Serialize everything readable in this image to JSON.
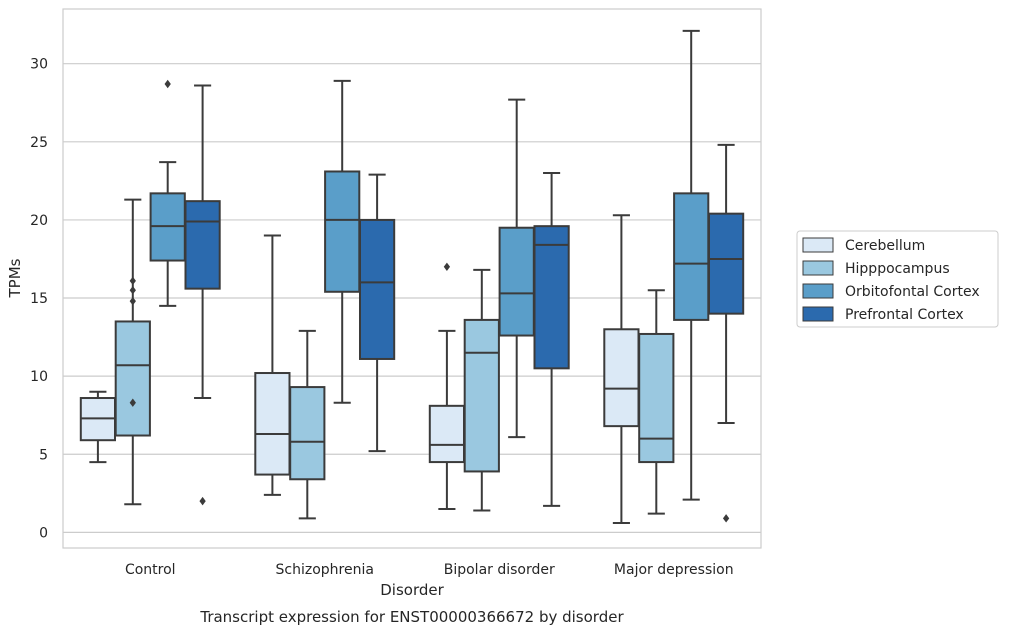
{
  "chart_data": {
    "type": "box",
    "xlabel": "Disorder",
    "ylabel": "TPMs",
    "caption": "Transcript expression for ENST00000366672 by disorder",
    "ylim": [
      -1,
      33.5
    ],
    "yticks": [
      0,
      5,
      10,
      15,
      20,
      25,
      30
    ],
    "grid": "horizontal",
    "legend_position": "right",
    "categories": [
      "Control",
      "Schizophrenia",
      "Bipolar disorder",
      "Major depression"
    ],
    "colors": [
      "#dbe9f6",
      "#9ac8e0",
      "#5a9ec9",
      "#2b6aae"
    ],
    "series": [
      {
        "name": "Cerebellum",
        "boxes": [
          {
            "whisker_low": 4.5,
            "q1": 5.9,
            "median": 7.3,
            "q3": 8.6,
            "whisker_high": 9.0,
            "outliers": []
          },
          {
            "whisker_low": 2.4,
            "q1": 3.7,
            "median": 6.3,
            "q3": 10.2,
            "whisker_high": 19.0,
            "outliers": []
          },
          {
            "whisker_low": 1.5,
            "q1": 4.5,
            "median": 5.6,
            "q3": 8.1,
            "whisker_high": 12.9,
            "outliers": [
              17.0
            ]
          },
          {
            "whisker_low": 0.6,
            "q1": 6.8,
            "median": 9.2,
            "q3": 13.0,
            "whisker_high": 20.3,
            "outliers": []
          }
        ]
      },
      {
        "name": "Hipppocampus",
        "boxes": [
          {
            "whisker_low": 1.8,
            "q1": 6.2,
            "median": 10.7,
            "q3": 13.5,
            "whisker_high": 21.3,
            "outliers": [
              16.1,
              15.5,
              14.8,
              8.3
            ]
          },
          {
            "whisker_low": 0.9,
            "q1": 3.4,
            "median": 5.8,
            "q3": 9.3,
            "whisker_high": 12.9,
            "outliers": []
          },
          {
            "whisker_low": 1.4,
            "q1": 3.9,
            "median": 11.5,
            "q3": 13.6,
            "whisker_high": 16.8,
            "outliers": []
          },
          {
            "whisker_low": 1.2,
            "q1": 4.5,
            "median": 6.0,
            "q3": 12.7,
            "whisker_high": 15.5,
            "outliers": []
          }
        ]
      },
      {
        "name": "Orbitofontal Cortex",
        "boxes": [
          {
            "whisker_low": 14.5,
            "q1": 17.4,
            "median": 19.6,
            "q3": 21.7,
            "whisker_high": 23.7,
            "outliers": [
              28.7
            ]
          },
          {
            "whisker_low": 8.3,
            "q1": 15.4,
            "median": 20.0,
            "q3": 23.1,
            "whisker_high": 28.9,
            "outliers": []
          },
          {
            "whisker_low": 6.1,
            "q1": 12.6,
            "median": 15.3,
            "q3": 19.5,
            "whisker_high": 27.7,
            "outliers": []
          },
          {
            "whisker_low": 2.1,
            "q1": 13.6,
            "median": 17.2,
            "q3": 21.7,
            "whisker_high": 32.1,
            "outliers": []
          }
        ]
      },
      {
        "name": "Prefrontal Cortex",
        "boxes": [
          {
            "whisker_low": 8.6,
            "q1": 15.6,
            "median": 19.9,
            "q3": 21.2,
            "whisker_high": 28.6,
            "outliers": [
              2.0
            ]
          },
          {
            "whisker_low": 5.2,
            "q1": 11.1,
            "median": 16.0,
            "q3": 20.0,
            "whisker_high": 22.9,
            "outliers": []
          },
          {
            "whisker_low": 1.7,
            "q1": 10.5,
            "median": 18.4,
            "q3": 19.6,
            "whisker_high": 23.0,
            "outliers": []
          },
          {
            "whisker_low": 7.0,
            "q1": 14.0,
            "median": 17.5,
            "q3": 20.4,
            "whisker_high": 24.8,
            "outliers": [
              0.9
            ]
          }
        ]
      }
    ]
  }
}
